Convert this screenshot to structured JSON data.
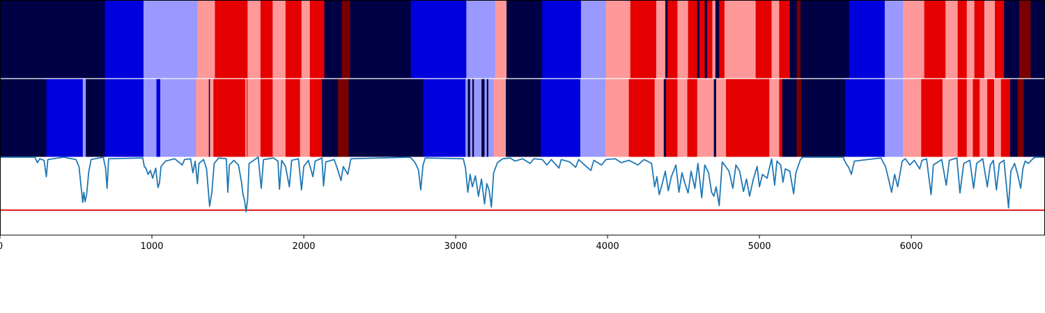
{
  "chart_data": {
    "type": "heatmap",
    "title": "",
    "xlabel": "",
    "ylabel": "",
    "xlim": [
      0,
      6880
    ],
    "xticks": [
      0,
      1000,
      2000,
      3000,
      4000,
      5000,
      6000
    ],
    "xtick_labels": [
      "0",
      "1000",
      "2000",
      "3000",
      "4000",
      "5000",
      "6000"
    ],
    "legend": "none",
    "grid": false,
    "palette": {
      "0": "#000044",
      "1": "#0000dd",
      "2": "#9999ff",
      "3": "#ff9999",
      "4": "#e40000",
      "5": "#7a0000"
    },
    "segmentation_rows": [
      {
        "states": [
          [
            0,
            0
          ],
          [
            690,
            1
          ],
          [
            945,
            2
          ],
          [
            1300,
            3
          ],
          [
            1415,
            4
          ],
          [
            1630,
            3
          ],
          [
            1715,
            4
          ],
          [
            1795,
            3
          ],
          [
            1880,
            4
          ],
          [
            1985,
            3
          ],
          [
            2040,
            4
          ],
          [
            2135,
            0
          ],
          [
            2250,
            5
          ],
          [
            2305,
            0
          ],
          [
            2705,
            1
          ],
          [
            3070,
            2
          ],
          [
            3260,
            3
          ],
          [
            3335,
            0
          ],
          [
            3570,
            1
          ],
          [
            3825,
            2
          ],
          [
            3990,
            3
          ],
          [
            4150,
            4
          ],
          [
            4320,
            3
          ],
          [
            4380,
            0
          ],
          [
            4395,
            4
          ],
          [
            4460,
            3
          ],
          [
            4530,
            4
          ],
          [
            4590,
            0
          ],
          [
            4605,
            4
          ],
          [
            4640,
            0
          ],
          [
            4655,
            4
          ],
          [
            4690,
            3
          ],
          [
            4710,
            0
          ],
          [
            4735,
            4
          ],
          [
            4770,
            3
          ],
          [
            4975,
            4
          ],
          [
            5080,
            3
          ],
          [
            5130,
            4
          ],
          [
            5200,
            0
          ],
          [
            5245,
            5
          ],
          [
            5270,
            0
          ],
          [
            5590,
            1
          ],
          [
            5825,
            2
          ],
          [
            5945,
            3
          ],
          [
            6085,
            4
          ],
          [
            6225,
            3
          ],
          [
            6305,
            4
          ],
          [
            6365,
            3
          ],
          [
            6415,
            4
          ],
          [
            6480,
            3
          ],
          [
            6550,
            4
          ],
          [
            6610,
            0
          ],
          [
            6710,
            5
          ],
          [
            6785,
            0
          ]
        ]
      },
      {
        "states": [
          [
            0,
            0
          ],
          [
            305,
            1
          ],
          [
            545,
            2
          ],
          [
            565,
            0
          ],
          [
            690,
            1
          ],
          [
            945,
            2
          ],
          [
            1030,
            1
          ],
          [
            1055,
            2
          ],
          [
            1290,
            3
          ],
          [
            1375,
            0
          ],
          [
            1382,
            3
          ],
          [
            1405,
            4
          ],
          [
            1615,
            3
          ],
          [
            1625,
            4
          ],
          [
            1630,
            3
          ],
          [
            1715,
            4
          ],
          [
            1795,
            3
          ],
          [
            1880,
            4
          ],
          [
            1975,
            3
          ],
          [
            2040,
            4
          ],
          [
            2120,
            0
          ],
          [
            2225,
            5
          ],
          [
            2295,
            0
          ],
          [
            2785,
            1
          ],
          [
            3065,
            2
          ],
          [
            3080,
            0
          ],
          [
            3095,
            2
          ],
          [
            3110,
            0
          ],
          [
            3120,
            2
          ],
          [
            3170,
            0
          ],
          [
            3190,
            2
          ],
          [
            3205,
            0
          ],
          [
            3215,
            2
          ],
          [
            3250,
            3
          ],
          [
            3330,
            0
          ],
          [
            3560,
            1
          ],
          [
            3820,
            2
          ],
          [
            3985,
            3
          ],
          [
            4140,
            4
          ],
          [
            4310,
            3
          ],
          [
            4370,
            0
          ],
          [
            4385,
            4
          ],
          [
            4460,
            3
          ],
          [
            4525,
            4
          ],
          [
            4590,
            3
          ],
          [
            4700,
            0
          ],
          [
            4715,
            3
          ],
          [
            4780,
            4
          ],
          [
            4965,
            4
          ],
          [
            5065,
            3
          ],
          [
            5130,
            4
          ],
          [
            5150,
            0
          ],
          [
            5245,
            5
          ],
          [
            5275,
            0
          ],
          [
            5565,
            1
          ],
          [
            5825,
            2
          ],
          [
            5945,
            3
          ],
          [
            6065,
            4
          ],
          [
            6205,
            3
          ],
          [
            6305,
            4
          ],
          [
            6365,
            3
          ],
          [
            6405,
            4
          ],
          [
            6450,
            3
          ],
          [
            6500,
            4
          ],
          [
            6545,
            3
          ],
          [
            6590,
            4
          ],
          [
            6650,
            0
          ],
          [
            6700,
            5
          ],
          [
            6740,
            0
          ]
        ]
      }
    ],
    "line_series": {
      "color": "#1f77b4",
      "ylim": [
        0,
        1
      ],
      "threshold": {
        "value": 0.32,
        "color": "#e00000"
      },
      "points": [
        [
          0,
          1.0
        ],
        [
          230,
          1.0
        ],
        [
          245,
          0.93
        ],
        [
          262,
          0.98
        ],
        [
          290,
          0.96
        ],
        [
          305,
          0.75
        ],
        [
          315,
          0.97
        ],
        [
          420,
          1.0
        ],
        [
          500,
          0.97
        ],
        [
          520,
          0.88
        ],
        [
          535,
          0.6
        ],
        [
          545,
          0.42
        ],
        [
          552,
          0.55
        ],
        [
          560,
          0.43
        ],
        [
          570,
          0.52
        ],
        [
          585,
          0.82
        ],
        [
          600,
          0.97
        ],
        [
          680,
          1.0
        ],
        [
          695,
          0.86
        ],
        [
          705,
          0.6
        ],
        [
          715,
          0.98
        ],
        [
          940,
          0.99
        ],
        [
          950,
          0.88
        ],
        [
          960,
          0.86
        ],
        [
          975,
          0.78
        ],
        [
          990,
          0.83
        ],
        [
          1005,
          0.73
        ],
        [
          1025,
          0.86
        ],
        [
          1040,
          0.61
        ],
        [
          1050,
          0.67
        ],
        [
          1060,
          0.88
        ],
        [
          1090,
          0.95
        ],
        [
          1150,
          0.98
        ],
        [
          1200,
          0.9
        ],
        [
          1215,
          0.97
        ],
        [
          1255,
          0.98
        ],
        [
          1270,
          0.8
        ],
        [
          1285,
          0.95
        ],
        [
          1300,
          0.66
        ],
        [
          1310,
          0.92
        ],
        [
          1340,
          0.97
        ],
        [
          1360,
          0.85
        ],
        [
          1380,
          0.37
        ],
        [
          1395,
          0.55
        ],
        [
          1410,
          0.92
        ],
        [
          1440,
          0.99
        ],
        [
          1490,
          0.98
        ],
        [
          1500,
          0.55
        ],
        [
          1510,
          0.9
        ],
        [
          1540,
          0.96
        ],
        [
          1570,
          0.9
        ],
        [
          1590,
          0.68
        ],
        [
          1600,
          0.52
        ],
        [
          1610,
          0.45
        ],
        [
          1620,
          0.3
        ],
        [
          1630,
          0.45
        ],
        [
          1640,
          0.92
        ],
        [
          1700,
          1.0
        ],
        [
          1720,
          0.6
        ],
        [
          1735,
          0.97
        ],
        [
          1800,
          0.99
        ],
        [
          1830,
          0.95
        ],
        [
          1840,
          0.59
        ],
        [
          1855,
          0.96
        ],
        [
          1880,
          0.88
        ],
        [
          1905,
          0.62
        ],
        [
          1920,
          0.96
        ],
        [
          1965,
          0.98
        ],
        [
          1985,
          0.58
        ],
        [
          2000,
          0.88
        ],
        [
          2030,
          0.96
        ],
        [
          2060,
          0.75
        ],
        [
          2075,
          0.95
        ],
        [
          2120,
          0.99
        ],
        [
          2130,
          0.63
        ],
        [
          2145,
          0.94
        ],
        [
          2200,
          0.97
        ],
        [
          2220,
          0.86
        ],
        [
          2245,
          0.7
        ],
        [
          2260,
          0.88
        ],
        [
          2290,
          0.78
        ],
        [
          2310,
          0.98
        ],
        [
          2700,
          1.0
        ],
        [
          2730,
          0.94
        ],
        [
          2755,
          0.84
        ],
        [
          2770,
          0.58
        ],
        [
          2785,
          0.9
        ],
        [
          2800,
          0.99
        ],
        [
          3050,
          0.98
        ],
        [
          3065,
          0.86
        ],
        [
          3080,
          0.55
        ],
        [
          3095,
          0.78
        ],
        [
          3110,
          0.62
        ],
        [
          3130,
          0.76
        ],
        [
          3150,
          0.5
        ],
        [
          3170,
          0.72
        ],
        [
          3190,
          0.4
        ],
        [
          3205,
          0.66
        ],
        [
          3220,
          0.58
        ],
        [
          3235,
          0.36
        ],
        [
          3250,
          0.8
        ],
        [
          3275,
          0.93
        ],
        [
          3310,
          0.98
        ],
        [
          3360,
          0.99
        ],
        [
          3390,
          0.95
        ],
        [
          3440,
          0.98
        ],
        [
          3490,
          0.92
        ],
        [
          3515,
          0.98
        ],
        [
          3570,
          0.97
        ],
        [
          3600,
          0.9
        ],
        [
          3630,
          0.97
        ],
        [
          3680,
          0.86
        ],
        [
          3695,
          0.97
        ],
        [
          3750,
          0.94
        ],
        [
          3790,
          0.87
        ],
        [
          3810,
          0.97
        ],
        [
          3860,
          0.88
        ],
        [
          3890,
          0.83
        ],
        [
          3910,
          0.96
        ],
        [
          3960,
          0.9
        ],
        [
          3990,
          0.97
        ],
        [
          4050,
          0.98
        ],
        [
          4090,
          0.93
        ],
        [
          4140,
          0.96
        ],
        [
          4200,
          0.9
        ],
        [
          4240,
          0.97
        ],
        [
          4290,
          0.92
        ],
        [
          4310,
          0.62
        ],
        [
          4325,
          0.75
        ],
        [
          4340,
          0.52
        ],
        [
          4360,
          0.66
        ],
        [
          4380,
          0.82
        ],
        [
          4400,
          0.57
        ],
        [
          4420,
          0.75
        ],
        [
          4450,
          0.9
        ],
        [
          4470,
          0.55
        ],
        [
          4490,
          0.8
        ],
        [
          4510,
          0.66
        ],
        [
          4530,
          0.54
        ],
        [
          4550,
          0.82
        ],
        [
          4575,
          0.6
        ],
        [
          4595,
          0.92
        ],
        [
          4620,
          0.48
        ],
        [
          4640,
          0.9
        ],
        [
          4665,
          0.8
        ],
        [
          4685,
          0.55
        ],
        [
          4700,
          0.5
        ],
        [
          4715,
          0.62
        ],
        [
          4735,
          0.38
        ],
        [
          4755,
          0.94
        ],
        [
          4800,
          0.82
        ],
        [
          4825,
          0.6
        ],
        [
          4845,
          0.9
        ],
        [
          4870,
          0.82
        ],
        [
          4895,
          0.56
        ],
        [
          4915,
          0.72
        ],
        [
          4935,
          0.5
        ],
        [
          4960,
          0.72
        ],
        [
          4985,
          0.88
        ],
        [
          5000,
          0.62
        ],
        [
          5020,
          0.78
        ],
        [
          5050,
          0.73
        ],
        [
          5080,
          0.98
        ],
        [
          5100,
          0.64
        ],
        [
          5115,
          0.95
        ],
        [
          5140,
          0.9
        ],
        [
          5155,
          0.68
        ],
        [
          5170,
          0.85
        ],
        [
          5200,
          0.82
        ],
        [
          5225,
          0.53
        ],
        [
          5240,
          0.8
        ],
        [
          5270,
          0.97
        ],
        [
          5285,
          1.0
        ],
        [
          5550,
          1.0
        ],
        [
          5570,
          0.92
        ],
        [
          5590,
          0.86
        ],
        [
          5605,
          0.78
        ],
        [
          5625,
          0.95
        ],
        [
          5800,
          0.99
        ],
        [
          5830,
          0.88
        ],
        [
          5850,
          0.72
        ],
        [
          5870,
          0.55
        ],
        [
          5890,
          0.78
        ],
        [
          5910,
          0.62
        ],
        [
          5940,
          0.95
        ],
        [
          5960,
          0.98
        ],
        [
          5990,
          0.9
        ],
        [
          6020,
          0.96
        ],
        [
          6055,
          0.85
        ],
        [
          6070,
          0.96
        ],
        [
          6100,
          0.98
        ],
        [
          6130,
          0.52
        ],
        [
          6145,
          0.9
        ],
        [
          6200,
          0.97
        ],
        [
          6230,
          0.64
        ],
        [
          6250,
          0.96
        ],
        [
          6300,
          0.99
        ],
        [
          6320,
          0.54
        ],
        [
          6345,
          0.92
        ],
        [
          6385,
          0.96
        ],
        [
          6410,
          0.6
        ],
        [
          6430,
          0.92
        ],
        [
          6470,
          0.98
        ],
        [
          6500,
          0.62
        ],
        [
          6520,
          0.9
        ],
        [
          6540,
          0.96
        ],
        [
          6560,
          0.58
        ],
        [
          6580,
          0.92
        ],
        [
          6610,
          0.96
        ],
        [
          6640,
          0.35
        ],
        [
          6655,
          0.82
        ],
        [
          6680,
          0.92
        ],
        [
          6700,
          0.78
        ],
        [
          6720,
          0.6
        ],
        [
          6735,
          0.86
        ],
        [
          6750,
          0.95
        ],
        [
          6770,
          0.92
        ],
        [
          6800,
          0.98
        ],
        [
          6815,
          1.0
        ],
        [
          6880,
          1.0
        ]
      ]
    }
  }
}
